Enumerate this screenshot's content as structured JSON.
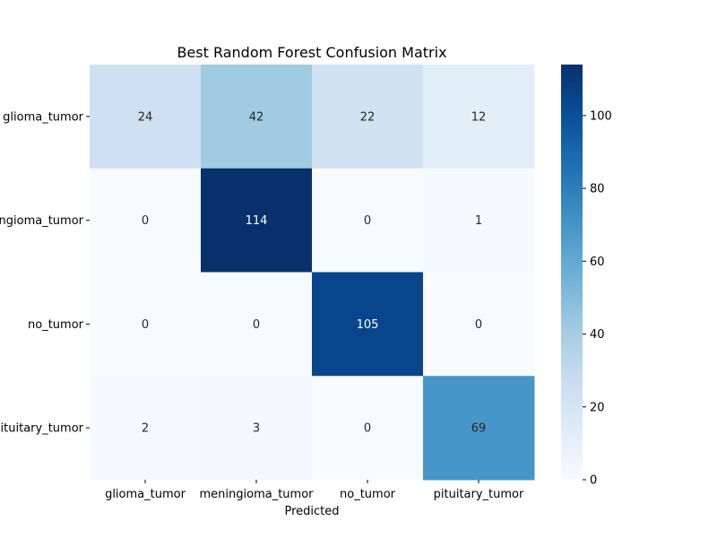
{
  "chart_data": {
    "type": "heatmap",
    "title": "Best Random Forest Confusion Matrix",
    "xlabel": "Predicted",
    "ylabel": "",
    "x_categories": [
      "glioma_tumor",
      "meningioma_tumor",
      "no_tumor",
      "pituitary_tumor"
    ],
    "y_categories": [
      "glioma_tumor",
      "meningioma_tumor",
      "no_tumor",
      "pituitary_tumor"
    ],
    "values": [
      [
        24,
        42,
        22,
        12
      ],
      [
        0,
        114,
        0,
        1
      ],
      [
        0,
        0,
        105,
        0
      ],
      [
        2,
        3,
        0,
        69
      ]
    ],
    "colormap": "Blues",
    "color_range": [
      0,
      114
    ],
    "colorbar_ticks": [
      0,
      20,
      40,
      60,
      80,
      100
    ],
    "annotations": true
  }
}
